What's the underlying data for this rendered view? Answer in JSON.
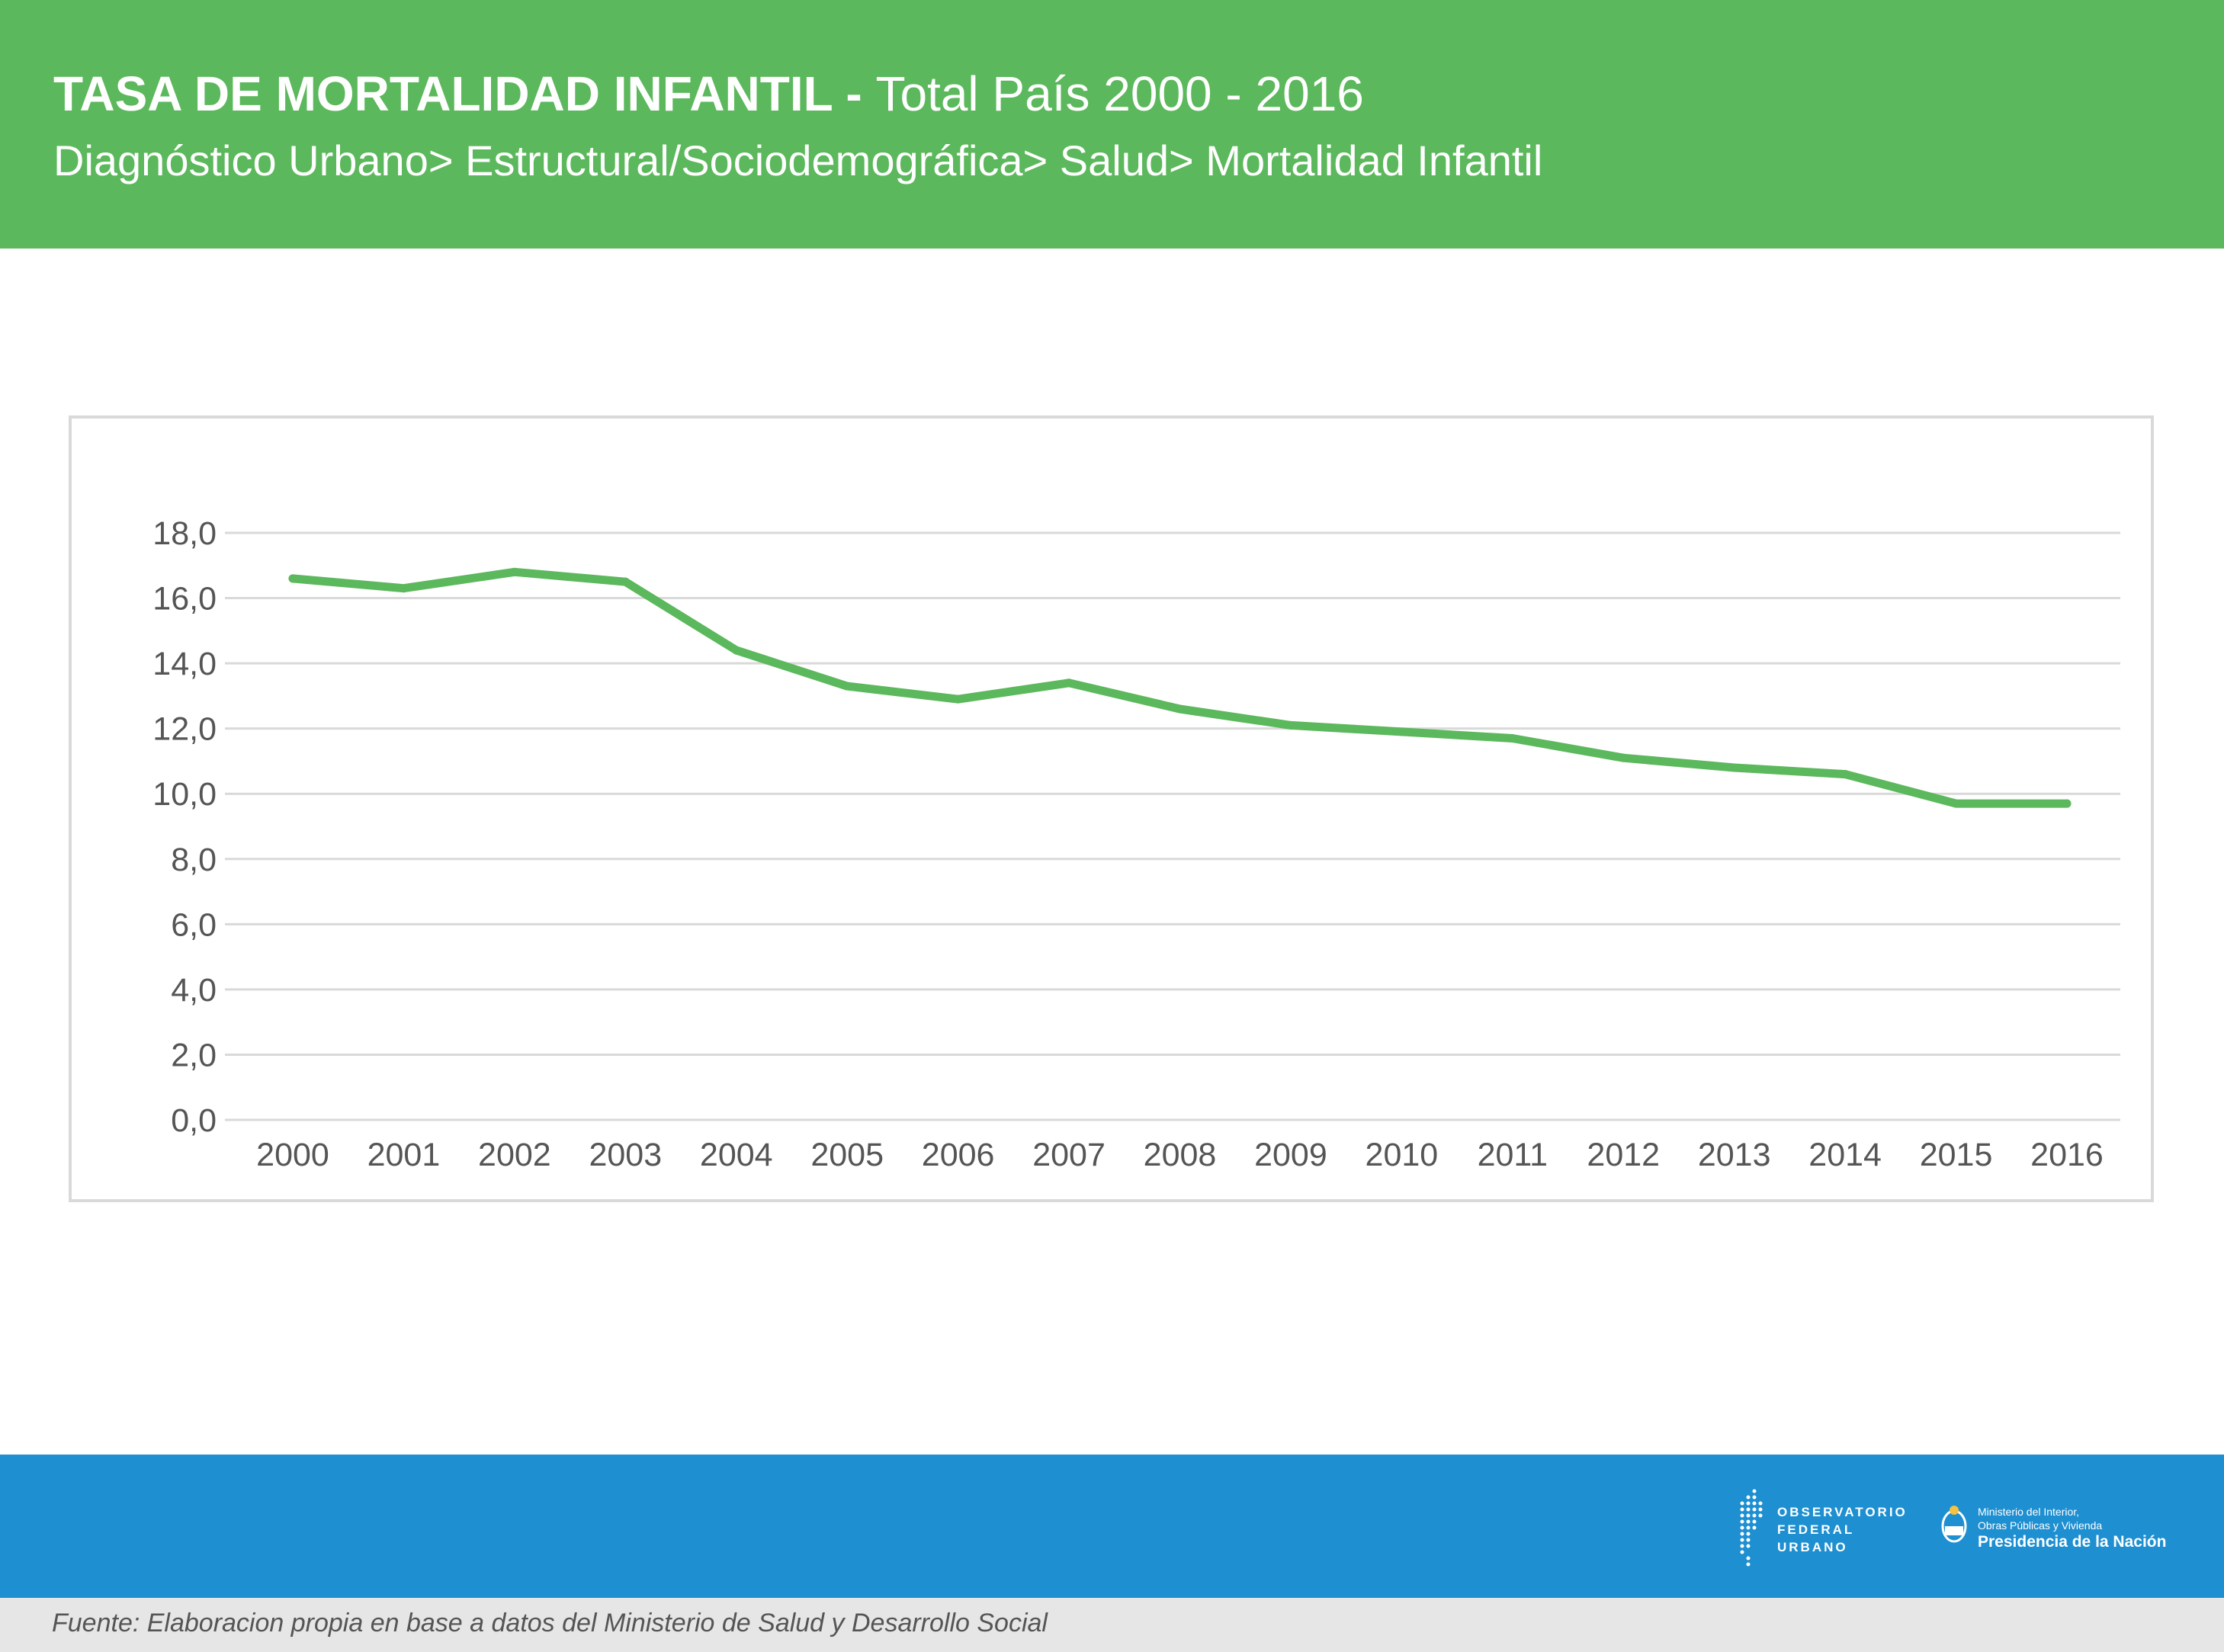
{
  "header": {
    "title_bold": "TASA DE MORTALIDAD INFANTIL -",
    "title_light": "Total País 2000 - 2016",
    "subtitle": "Diagnóstico Urbano> Estructural/Sociodemográfica> Salud> Mortalidad Infantil"
  },
  "chart_data": {
    "type": "line",
    "title": "",
    "xlabel": "",
    "ylabel": "",
    "x": [
      "2000",
      "2001",
      "2002",
      "2003",
      "2004",
      "2005",
      "2006",
      "2007",
      "2008",
      "2009",
      "2010",
      "2011",
      "2012",
      "2013",
      "2014",
      "2015",
      "2016"
    ],
    "series": [
      {
        "values": [
          16.6,
          16.3,
          16.8,
          16.5,
          14.4,
          13.3,
          12.9,
          13.4,
          12.6,
          12.1,
          11.9,
          11.7,
          11.1,
          10.8,
          10.6,
          9.7,
          9.7
        ],
        "color": "#5cb85c"
      }
    ],
    "ylim": [
      0,
      18
    ],
    "yticks": [
      0,
      2,
      4,
      6,
      8,
      10,
      12,
      14,
      16,
      18
    ],
    "ytick_labels": [
      "0,0",
      "2,0",
      "4,0",
      "6,0",
      "8,0",
      "10,0",
      "12,0",
      "14,0",
      "16,0",
      "18,0"
    ],
    "grid": true,
    "legend": "none"
  },
  "footer": {
    "source": "Fuente: Elaboracion propia en base a datos del Ministerio de Salud y Desarrollo Social",
    "logo_observatorio": [
      "OBSERVATORIO",
      "FEDERAL",
      "URBANO"
    ],
    "logo_ministerio": {
      "line1": "Ministerio del Interior,",
      "line2": "Obras Públicas y Vivienda",
      "line3": "Presidencia de la Nación"
    }
  },
  "colors": {
    "header_bg": "#5cb85c",
    "footer_band": "#1e8fd0",
    "source_bar": "#e6e6e6",
    "line": "#5cb85c",
    "grid": "#d9d9d9"
  }
}
